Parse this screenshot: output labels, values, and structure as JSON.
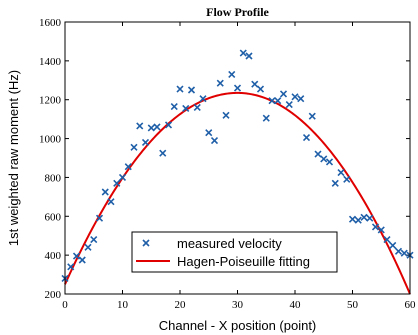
{
  "chart_data": {
    "type": "scatter",
    "title": "Flow Profile",
    "xlabel": "Channel - X position (point)",
    "ylabel": "1st weighted raw moment (Hz)",
    "xlim": [
      0,
      60
    ],
    "ylim": [
      200,
      1600
    ],
    "xticks": [
      "0",
      "10",
      "20",
      "30",
      "40",
      "50",
      "60"
    ],
    "yticks": [
      "200",
      "400",
      "600",
      "800",
      "1000",
      "1200",
      "1400",
      "1600"
    ],
    "grid": false,
    "legend_position": "bottom-center",
    "series": [
      {
        "name": "measured velocity",
        "marker": "x",
        "color": "#1f5fa8",
        "points": [
          [
            0,
            280
          ],
          [
            1,
            340
          ],
          [
            2,
            395
          ],
          [
            3,
            375
          ],
          [
            4,
            440
          ],
          [
            5,
            480
          ],
          [
            6,
            590
          ],
          [
            7,
            725
          ],
          [
            8,
            675
          ],
          [
            9,
            770
          ],
          [
            10,
            800
          ],
          [
            11,
            855
          ],
          [
            12,
            955
          ],
          [
            13,
            1065
          ],
          [
            14,
            980
          ],
          [
            15,
            1055
          ],
          [
            16,
            1060
          ],
          [
            17,
            925
          ],
          [
            18,
            1070
          ],
          [
            19,
            1165
          ],
          [
            20,
            1255
          ],
          [
            21,
            1155
          ],
          [
            22,
            1250
          ],
          [
            23,
            1160
          ],
          [
            24,
            1205
          ],
          [
            25,
            1030
          ],
          [
            26,
            990
          ],
          [
            27,
            1285
          ],
          [
            28,
            1120
          ],
          [
            29,
            1330
          ],
          [
            30,
            1260
          ],
          [
            31,
            1440
          ],
          [
            32,
            1425
          ],
          [
            33,
            1280
          ],
          [
            34,
            1255
          ],
          [
            35,
            1105
          ],
          [
            36,
            1195
          ],
          [
            37,
            1195
          ],
          [
            38,
            1230
          ],
          [
            39,
            1175
          ],
          [
            40,
            1215
          ],
          [
            41,
            1205
          ],
          [
            42,
            1005
          ],
          [
            43,
            1115
          ],
          [
            44,
            920
          ],
          [
            45,
            895
          ],
          [
            46,
            880
          ],
          [
            47,
            770
          ],
          [
            48,
            825
          ],
          [
            49,
            790
          ],
          [
            50,
            585
          ],
          [
            51,
            580
          ],
          [
            52,
            595
          ],
          [
            53,
            590
          ],
          [
            54,
            545
          ],
          [
            55,
            530
          ],
          [
            56,
            480
          ],
          [
            57,
            450
          ],
          [
            58,
            420
          ],
          [
            59,
            410
          ],
          [
            60,
            400
          ]
        ]
      },
      {
        "name": "Hagen-Poiseuille fitting",
        "style": "line",
        "color": "#e00000",
        "model": "parabola",
        "vertex": [
          30,
          1235
        ],
        "endpoints": [
          [
            0,
            250
          ],
          [
            60,
            200
          ]
        ]
      }
    ]
  }
}
